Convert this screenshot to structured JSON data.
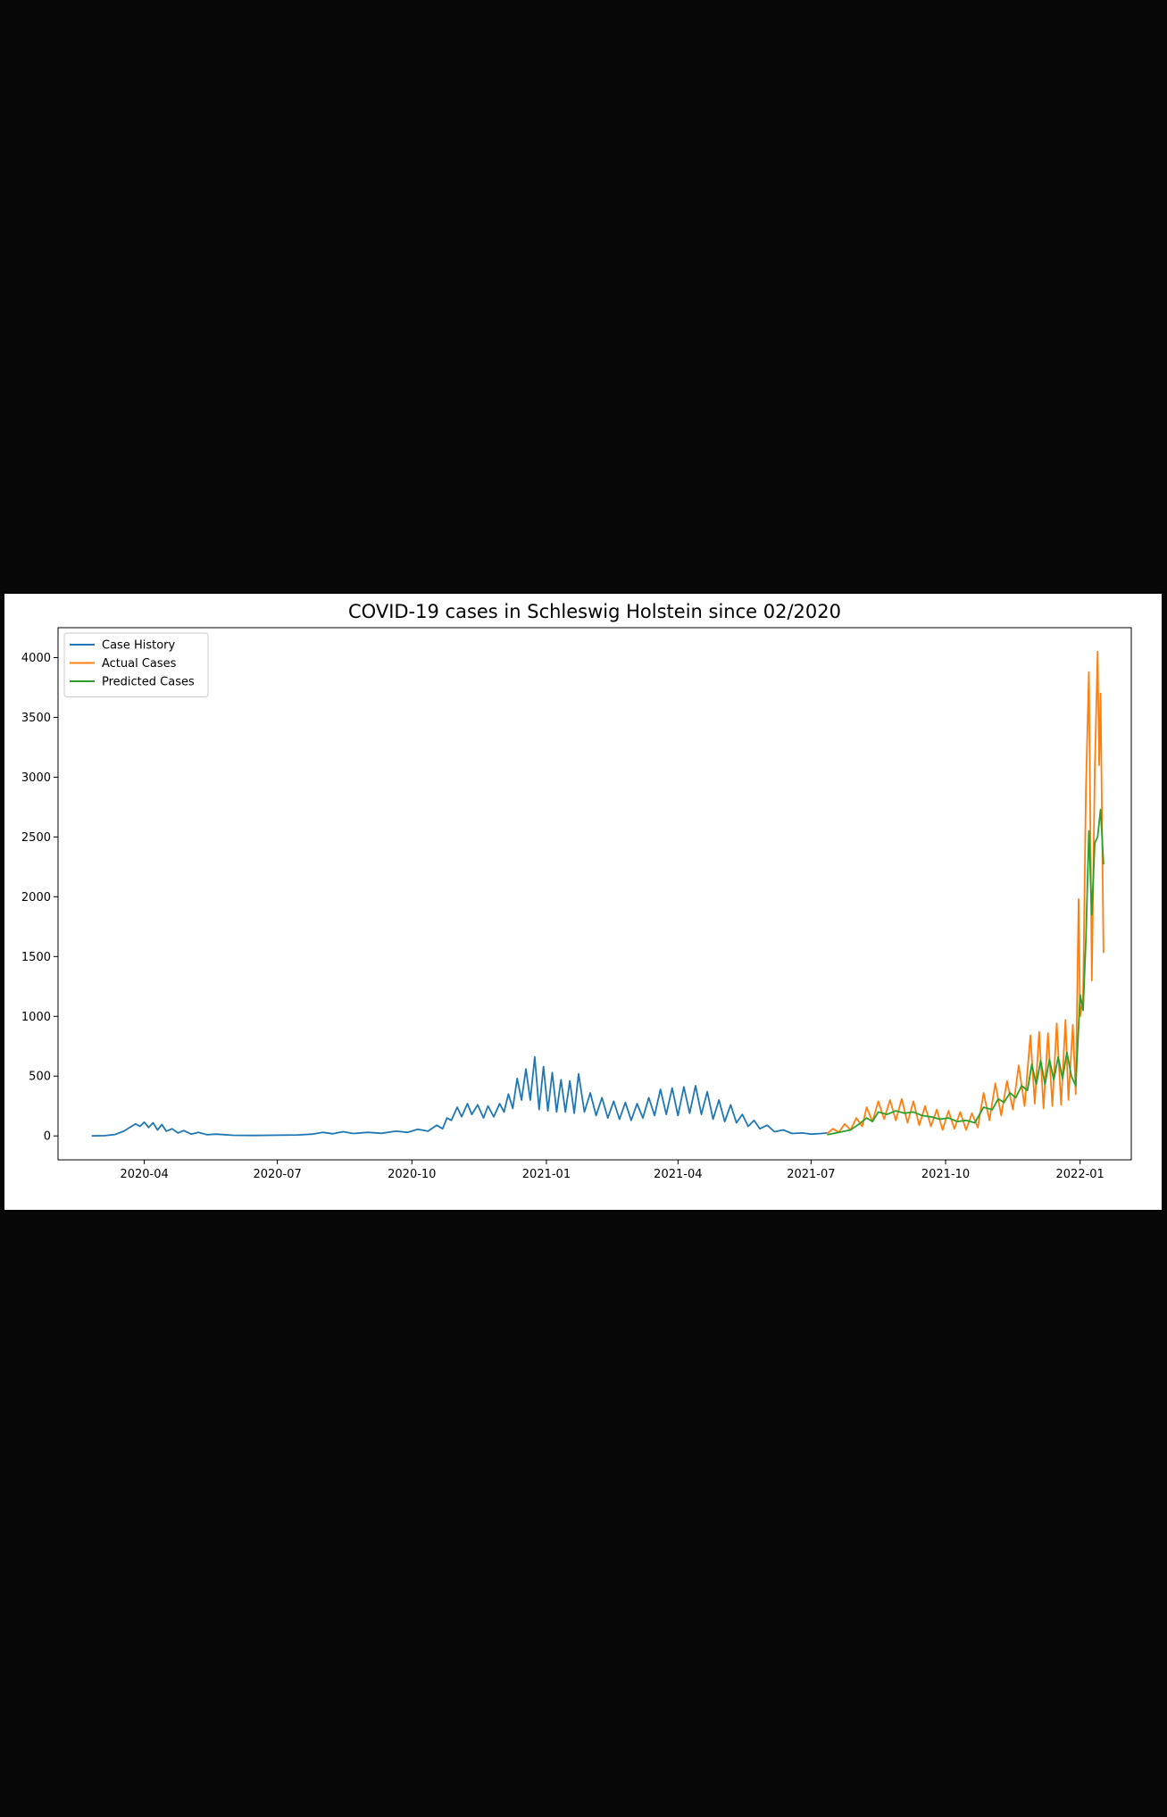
{
  "chart_data": {
    "type": "line",
    "title": "COVID-19 cases in Schleswig Holstein since 02/2020",
    "xlabel": "",
    "ylabel": "",
    "x_scale": "date",
    "xlim": [
      "2020-02-02",
      "2022-02-05"
    ],
    "ylim": [
      -200,
      4250
    ],
    "x_ticks": [
      "2020-04",
      "2020-07",
      "2020-10",
      "2021-01",
      "2021-04",
      "2021-07",
      "2021-10",
      "2022-01"
    ],
    "y_ticks": [
      0,
      500,
      1000,
      1500,
      2000,
      2500,
      3000,
      3500,
      4000
    ],
    "grid": false,
    "legend": "top-left",
    "series": [
      {
        "name": "Case History",
        "color": "#1f77b4",
        "points": [
          [
            "2020-02-25",
            0
          ],
          [
            "2020-03-05",
            2
          ],
          [
            "2020-03-12",
            12
          ],
          [
            "2020-03-18",
            40
          ],
          [
            "2020-03-22",
            70
          ],
          [
            "2020-03-26",
            100
          ],
          [
            "2020-03-29",
            80
          ],
          [
            "2020-04-01",
            115
          ],
          [
            "2020-04-04",
            70
          ],
          [
            "2020-04-07",
            110
          ],
          [
            "2020-04-10",
            50
          ],
          [
            "2020-04-13",
            95
          ],
          [
            "2020-04-16",
            40
          ],
          [
            "2020-04-20",
            60
          ],
          [
            "2020-04-24",
            25
          ],
          [
            "2020-04-28",
            45
          ],
          [
            "2020-05-03",
            15
          ],
          [
            "2020-05-08",
            30
          ],
          [
            "2020-05-14",
            10
          ],
          [
            "2020-05-20",
            15
          ],
          [
            "2020-06-01",
            5
          ],
          [
            "2020-06-15",
            4
          ],
          [
            "2020-07-01",
            6
          ],
          [
            "2020-07-15",
            8
          ],
          [
            "2020-07-25",
            15
          ],
          [
            "2020-08-01",
            30
          ],
          [
            "2020-08-08",
            18
          ],
          [
            "2020-08-15",
            35
          ],
          [
            "2020-08-22",
            20
          ],
          [
            "2020-09-01",
            30
          ],
          [
            "2020-09-10",
            22
          ],
          [
            "2020-09-20",
            40
          ],
          [
            "2020-09-28",
            30
          ],
          [
            "2020-10-05",
            55
          ],
          [
            "2020-10-12",
            40
          ],
          [
            "2020-10-18",
            90
          ],
          [
            "2020-10-22",
            60
          ],
          [
            "2020-10-25",
            150
          ],
          [
            "2020-10-28",
            130
          ],
          [
            "2020-11-01",
            240
          ],
          [
            "2020-11-04",
            160
          ],
          [
            "2020-11-08",
            270
          ],
          [
            "2020-11-11",
            180
          ],
          [
            "2020-11-15",
            260
          ],
          [
            "2020-11-19",
            150
          ],
          [
            "2020-11-22",
            250
          ],
          [
            "2020-11-26",
            160
          ],
          [
            "2020-11-30",
            270
          ],
          [
            "2020-12-03",
            200
          ],
          [
            "2020-12-06",
            350
          ],
          [
            "2020-12-09",
            230
          ],
          [
            "2020-12-12",
            480
          ],
          [
            "2020-12-15",
            300
          ],
          [
            "2020-12-18",
            560
          ],
          [
            "2020-12-21",
            300
          ],
          [
            "2020-12-24",
            660
          ],
          [
            "2020-12-27",
            220
          ],
          [
            "2020-12-30",
            580
          ],
          [
            "2021-01-02",
            210
          ],
          [
            "2021-01-05",
            530
          ],
          [
            "2021-01-08",
            200
          ],
          [
            "2021-01-11",
            470
          ],
          [
            "2021-01-14",
            200
          ],
          [
            "2021-01-17",
            460
          ],
          [
            "2021-01-20",
            190
          ],
          [
            "2021-01-23",
            520
          ],
          [
            "2021-01-27",
            200
          ],
          [
            "2021-01-31",
            360
          ],
          [
            "2021-02-04",
            170
          ],
          [
            "2021-02-08",
            320
          ],
          [
            "2021-02-12",
            150
          ],
          [
            "2021-02-16",
            290
          ],
          [
            "2021-02-20",
            140
          ],
          [
            "2021-02-24",
            280
          ],
          [
            "2021-02-28",
            130
          ],
          [
            "2021-03-04",
            270
          ],
          [
            "2021-03-08",
            150
          ],
          [
            "2021-03-12",
            320
          ],
          [
            "2021-03-16",
            170
          ],
          [
            "2021-03-20",
            390
          ],
          [
            "2021-03-24",
            180
          ],
          [
            "2021-03-28",
            400
          ],
          [
            "2021-04-01",
            170
          ],
          [
            "2021-04-05",
            410
          ],
          [
            "2021-04-09",
            190
          ],
          [
            "2021-04-13",
            420
          ],
          [
            "2021-04-17",
            180
          ],
          [
            "2021-04-21",
            370
          ],
          [
            "2021-04-25",
            140
          ],
          [
            "2021-04-29",
            300
          ],
          [
            "2021-05-03",
            120
          ],
          [
            "2021-05-07",
            260
          ],
          [
            "2021-05-11",
            110
          ],
          [
            "2021-05-15",
            180
          ],
          [
            "2021-05-19",
            80
          ],
          [
            "2021-05-23",
            130
          ],
          [
            "2021-05-27",
            60
          ],
          [
            "2021-06-01",
            90
          ],
          [
            "2021-06-06",
            35
          ],
          [
            "2021-06-12",
            50
          ],
          [
            "2021-06-18",
            20
          ],
          [
            "2021-06-25",
            25
          ],
          [
            "2021-07-01",
            15
          ],
          [
            "2021-07-08",
            20
          ],
          [
            "2021-07-12",
            25
          ]
        ]
      },
      {
        "name": "Actual Cases",
        "color": "#ff7f0e",
        "points": [
          [
            "2021-07-12",
            20
          ],
          [
            "2021-07-16",
            60
          ],
          [
            "2021-07-20",
            30
          ],
          [
            "2021-07-24",
            100
          ],
          [
            "2021-07-28",
            50
          ],
          [
            "2021-08-01",
            150
          ],
          [
            "2021-08-05",
            80
          ],
          [
            "2021-08-08",
            240
          ],
          [
            "2021-08-12",
            120
          ],
          [
            "2021-08-16",
            290
          ],
          [
            "2021-08-20",
            140
          ],
          [
            "2021-08-24",
            300
          ],
          [
            "2021-08-28",
            130
          ],
          [
            "2021-09-01",
            310
          ],
          [
            "2021-09-05",
            110
          ],
          [
            "2021-09-09",
            290
          ],
          [
            "2021-09-13",
            90
          ],
          [
            "2021-09-17",
            250
          ],
          [
            "2021-09-21",
            80
          ],
          [
            "2021-09-25",
            220
          ],
          [
            "2021-09-29",
            50
          ],
          [
            "2021-10-03",
            210
          ],
          [
            "2021-10-07",
            60
          ],
          [
            "2021-10-11",
            200
          ],
          [
            "2021-10-15",
            50
          ],
          [
            "2021-10-19",
            190
          ],
          [
            "2021-10-23",
            70
          ],
          [
            "2021-10-27",
            360
          ],
          [
            "2021-10-31",
            130
          ],
          [
            "2021-11-04",
            440
          ],
          [
            "2021-11-08",
            170
          ],
          [
            "2021-11-12",
            460
          ],
          [
            "2021-11-16",
            220
          ],
          [
            "2021-11-20",
            590
          ],
          [
            "2021-11-24",
            250
          ],
          [
            "2021-11-28",
            840
          ],
          [
            "2021-12-01",
            270
          ],
          [
            "2021-12-04",
            870
          ],
          [
            "2021-12-07",
            230
          ],
          [
            "2021-12-10",
            860
          ],
          [
            "2021-12-13",
            250
          ],
          [
            "2021-12-16",
            940
          ],
          [
            "2021-12-19",
            260
          ],
          [
            "2021-12-22",
            970
          ],
          [
            "2021-12-24",
            300
          ],
          [
            "2021-12-27",
            930
          ],
          [
            "2021-12-29",
            350
          ],
          [
            "2021-12-31",
            1980
          ],
          [
            "2022-01-01",
            1000
          ],
          [
            "2022-01-03",
            1150
          ],
          [
            "2022-01-05",
            2900
          ],
          [
            "2022-01-07",
            3880
          ],
          [
            "2022-01-09",
            1300
          ],
          [
            "2022-01-11",
            3050
          ],
          [
            "2022-01-13",
            4050
          ],
          [
            "2022-01-14",
            3100
          ],
          [
            "2022-01-15",
            3700
          ],
          [
            "2022-01-17",
            1530
          ]
        ]
      },
      {
        "name": "Predicted Cases",
        "color": "#2ca02c",
        "points": [
          [
            "2021-07-12",
            10
          ],
          [
            "2021-07-20",
            30
          ],
          [
            "2021-07-28",
            50
          ],
          [
            "2021-08-03",
            100
          ],
          [
            "2021-08-08",
            150
          ],
          [
            "2021-08-12",
            120
          ],
          [
            "2021-08-16",
            200
          ],
          [
            "2021-08-22",
            180
          ],
          [
            "2021-08-28",
            210
          ],
          [
            "2021-09-03",
            190
          ],
          [
            "2021-09-09",
            200
          ],
          [
            "2021-09-15",
            170
          ],
          [
            "2021-09-21",
            160
          ],
          [
            "2021-09-27",
            140
          ],
          [
            "2021-10-03",
            150
          ],
          [
            "2021-10-09",
            120
          ],
          [
            "2021-10-15",
            130
          ],
          [
            "2021-10-21",
            110
          ],
          [
            "2021-10-27",
            240
          ],
          [
            "2021-11-02",
            220
          ],
          [
            "2021-11-06",
            310
          ],
          [
            "2021-11-10",
            280
          ],
          [
            "2021-11-14",
            360
          ],
          [
            "2021-11-18",
            320
          ],
          [
            "2021-11-22",
            420
          ],
          [
            "2021-11-26",
            380
          ],
          [
            "2021-11-29",
            600
          ],
          [
            "2021-12-02",
            430
          ],
          [
            "2021-12-05",
            630
          ],
          [
            "2021-12-08",
            430
          ],
          [
            "2021-12-11",
            640
          ],
          [
            "2021-12-14",
            470
          ],
          [
            "2021-12-17",
            660
          ],
          [
            "2021-12-20",
            480
          ],
          [
            "2021-12-23",
            700
          ],
          [
            "2021-12-26",
            500
          ],
          [
            "2021-12-29",
            420
          ],
          [
            "2022-01-01",
            1180
          ],
          [
            "2022-01-03",
            1050
          ],
          [
            "2022-01-05",
            1650
          ],
          [
            "2022-01-07",
            2550
          ],
          [
            "2022-01-09",
            1850
          ],
          [
            "2022-01-11",
            2450
          ],
          [
            "2022-01-13",
            2500
          ],
          [
            "2022-01-15",
            2730
          ],
          [
            "2022-01-17",
            2270
          ]
        ]
      }
    ]
  }
}
